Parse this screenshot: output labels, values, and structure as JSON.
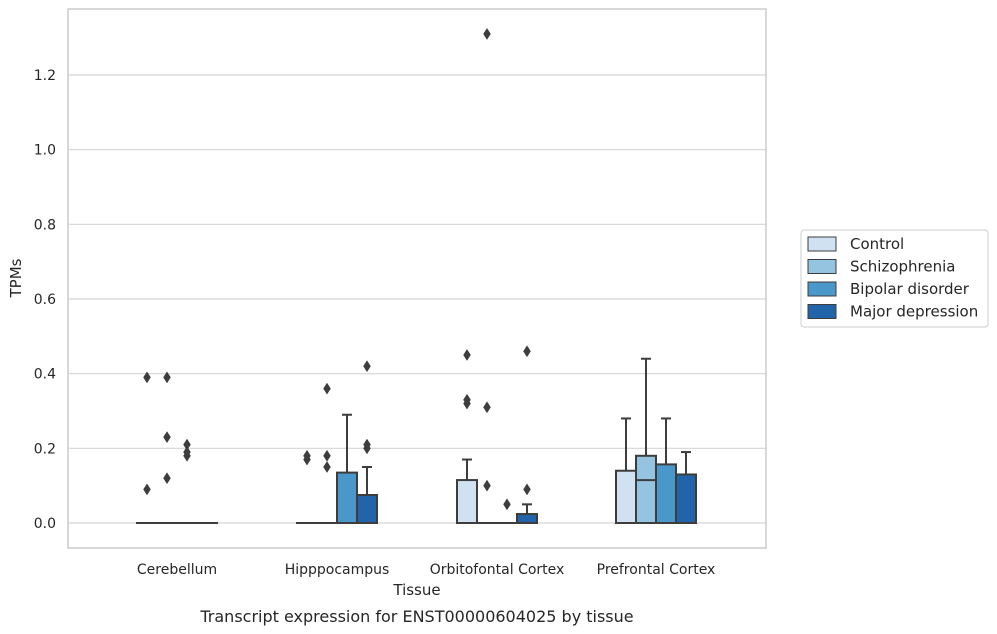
{
  "chart_data": {
    "type": "box",
    "caption": "Transcript expression for ENST00000604025 by tissue",
    "xlabel": "Tissue",
    "ylabel": "TPMs",
    "ylim": [
      -0.065,
      1.38
    ],
    "yticks": [
      "0.0",
      "0.2",
      "0.4",
      "0.6",
      "0.8",
      "1.0",
      "1.2"
    ],
    "grid": true,
    "legend_position": "right",
    "categories": [
      "Cerebellum",
      "Hipppocampus",
      "Orbitofontal Cortex",
      "Prefrontal Cortex"
    ],
    "series": [
      {
        "name": "Control",
        "color": "#d0e1f2",
        "boxes": [
          {
            "q1": 0,
            "median": 0,
            "q3": 0,
            "whisker_low": 0,
            "whisker_high": 0,
            "outliers": [
              0.39,
              0.09
            ]
          },
          {
            "q1": 0,
            "median": 0,
            "q3": 0,
            "whisker_low": 0,
            "whisker_high": 0,
            "outliers": [
              0.18,
              0.17
            ]
          },
          {
            "q1": 0,
            "median": 0,
            "q3": 0.115,
            "whisker_low": 0,
            "whisker_high": 0.17,
            "outliers": [
              0.45,
              0.33,
              0.32
            ]
          },
          {
            "q1": 0,
            "median": 0,
            "q3": 0.14,
            "whisker_low": 0,
            "whisker_high": 0.28,
            "outliers": []
          }
        ]
      },
      {
        "name": "Schizophrenia",
        "color": "#94c4df",
        "boxes": [
          {
            "q1": 0,
            "median": 0,
            "q3": 0,
            "whisker_low": 0,
            "whisker_high": 0,
            "outliers": [
              0.39,
              0.23,
              0.12
            ]
          },
          {
            "q1": 0,
            "median": 0,
            "q3": 0,
            "whisker_low": 0,
            "whisker_high": 0,
            "outliers": [
              0.36,
              0.18,
              0.15
            ]
          },
          {
            "q1": 0,
            "median": 0,
            "q3": 0,
            "whisker_low": 0,
            "whisker_high": 0,
            "outliers": [
              1.31,
              0.31,
              0.1
            ]
          },
          {
            "q1": 0,
            "median": 0.115,
            "q3": 0.18,
            "whisker_low": 0,
            "whisker_high": 0.44,
            "outliers": []
          }
        ]
      },
      {
        "name": "Bipolar disorder",
        "color": "#4a98c9",
        "boxes": [
          {
            "q1": 0,
            "median": 0,
            "q3": 0,
            "whisker_low": 0,
            "whisker_high": 0,
            "outliers": [
              0.21,
              0.19,
              0.18
            ]
          },
          {
            "q1": 0,
            "median": 0,
            "q3": 0.135,
            "whisker_low": 0,
            "whisker_high": 0.29,
            "outliers": []
          },
          {
            "q1": 0,
            "median": 0,
            "q3": 0,
            "whisker_low": 0,
            "whisker_high": 0,
            "outliers": [
              0.05
            ]
          },
          {
            "q1": 0,
            "median": 0,
            "q3": 0.157,
            "whisker_low": 0,
            "whisker_high": 0.28,
            "outliers": []
          }
        ]
      },
      {
        "name": "Major depression",
        "color": "#2264aa",
        "boxes": [
          {
            "q1": 0,
            "median": 0,
            "q3": 0,
            "whisker_low": 0,
            "whisker_high": 0,
            "outliers": []
          },
          {
            "q1": 0,
            "median": 0,
            "q3": 0.075,
            "whisker_low": 0,
            "whisker_high": 0.15,
            "outliers": [
              0.42,
              0.21,
              0.2
            ]
          },
          {
            "q1": 0,
            "median": 0,
            "q3": 0.024,
            "whisker_low": 0,
            "whisker_high": 0.05,
            "outliers": [
              0.46,
              0.09
            ]
          },
          {
            "q1": 0,
            "median": 0,
            "q3": 0.13,
            "whisker_low": 0,
            "whisker_high": 0.19,
            "outliers": []
          }
        ]
      }
    ]
  }
}
